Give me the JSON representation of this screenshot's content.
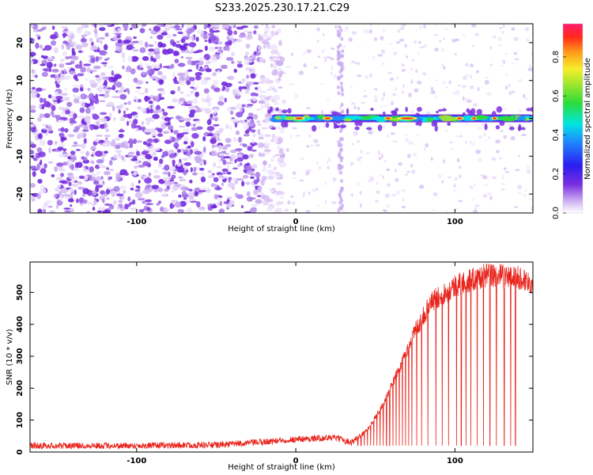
{
  "figure_title": "S233.2025.230.17.21.C29",
  "chart_data": [
    {
      "type": "heatmap",
      "title": "S233.2025.230.17.21.C29",
      "xlabel": "Height of straight line (km)",
      "ylabel": "Frequency (Hz)",
      "xlim": [
        -167,
        149
      ],
      "ylim": [
        -25,
        25
      ],
      "xticks": [
        -100,
        0,
        100
      ],
      "yticks": [
        -20,
        -10,
        0,
        10,
        20
      ],
      "colorbar": {
        "label": "Normalized spectral amplitude",
        "range": [
          0,
          0.97
        ],
        "ticks": [
          0.0,
          0.2,
          0.4,
          0.6,
          0.8
        ]
      },
      "signal_band": {
        "description": "narrow ridge near 0 Hz",
        "x_start": -18,
        "x_end": 149,
        "frequency_hz": 0,
        "peak_region": [
          55,
          80
        ]
      },
      "noise_region": {
        "x_start": -167,
        "x_end": -18
      }
    },
    {
      "type": "line",
      "xlabel": "Height of straight line (km)",
      "ylabel": "SNR (10 * v/v)",
      "xlim": [
        -167,
        149
      ],
      "ylim": [
        0,
        595
      ],
      "xticks": [
        -100,
        0,
        100
      ],
      "yticks": [
        0,
        100,
        200,
        300,
        400,
        500
      ],
      "series": [
        {
          "name": "SNR",
          "color": "#e8231b",
          "envelope_x": [
            -167,
            -100,
            -50,
            -25,
            0,
            25,
            35,
            45,
            55,
            65,
            75,
            85,
            100,
            120,
            140,
            149
          ],
          "envelope_y": [
            20,
            20,
            22,
            30,
            40,
            45,
            30,
            70,
            150,
            260,
            380,
            470,
            520,
            555,
            545,
            530
          ],
          "drop_x": [
            39,
            41,
            43,
            45,
            47,
            49,
            51,
            53,
            55,
            57,
            59,
            61,
            63,
            65,
            67,
            69,
            71,
            73,
            76,
            79,
            83,
            88,
            92,
            96,
            101,
            104,
            107,
            110,
            114,
            118,
            122,
            126,
            131,
            135,
            138
          ],
          "drop_floor": 20
        }
      ]
    }
  ]
}
